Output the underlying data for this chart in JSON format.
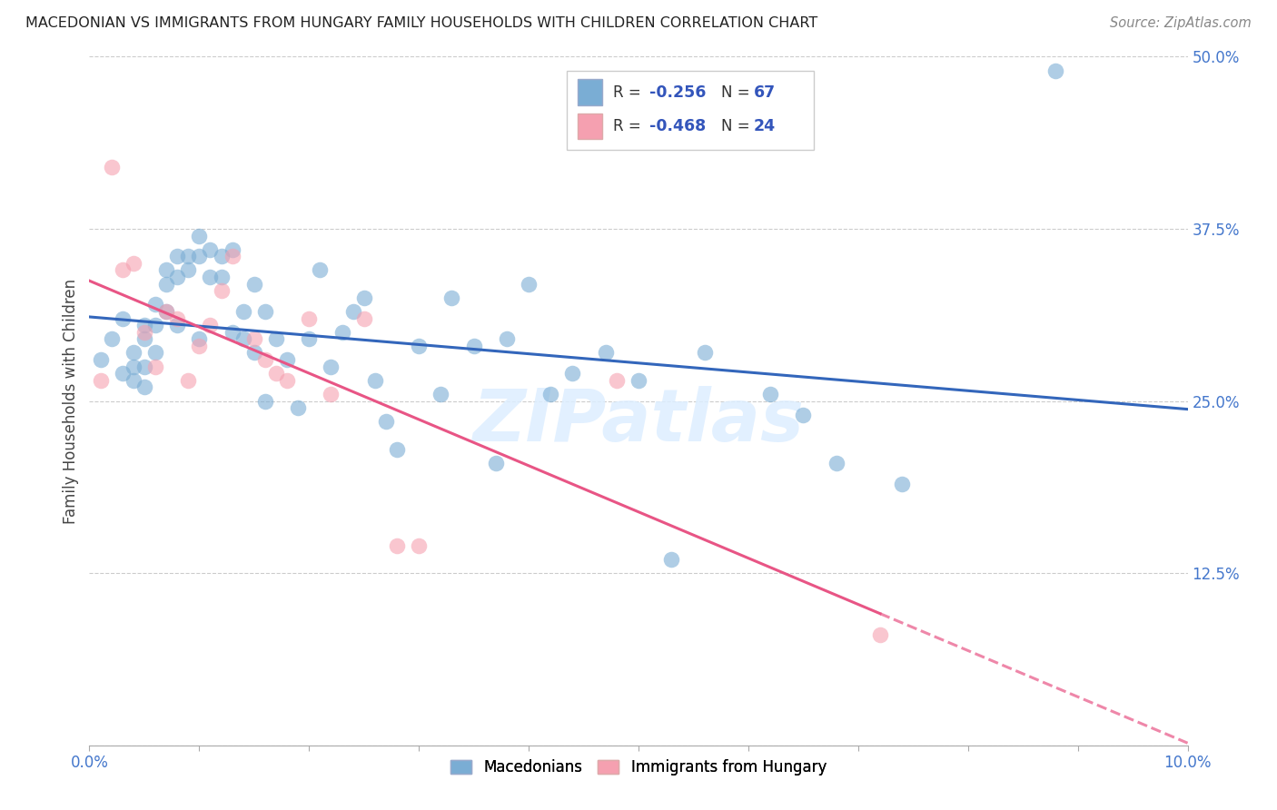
{
  "title": "MACEDONIAN VS IMMIGRANTS FROM HUNGARY FAMILY HOUSEHOLDS WITH CHILDREN CORRELATION CHART",
  "source": "Source: ZipAtlas.com",
  "ylabel": "Family Households with Children",
  "x_min": 0.0,
  "x_max": 0.1,
  "y_min": 0.0,
  "y_max": 0.5,
  "x_ticks": [
    0.0,
    0.01,
    0.02,
    0.03,
    0.04,
    0.05,
    0.06,
    0.07,
    0.08,
    0.09,
    0.1
  ],
  "x_tick_labels_show": {
    "0.0": "0.0%",
    "0.10": "10.0%"
  },
  "y_ticks": [
    0.0,
    0.125,
    0.25,
    0.375,
    0.5
  ],
  "y_tick_labels": [
    "",
    "12.5%",
    "25.0%",
    "37.5%",
    "50.0%"
  ],
  "blue_color": "#7aadd4",
  "pink_color": "#f5a0b0",
  "blue_line_color": "#3366bb",
  "pink_line_color": "#e85585",
  "watermark_text": "ZIPatlas",
  "watermark_color": "#ddeeff",
  "legend_R1": "-0.256",
  "legend_N1": "67",
  "legend_R2": "-0.468",
  "legend_N2": "24",
  "blue_points_x": [
    0.001,
    0.002,
    0.003,
    0.003,
    0.004,
    0.004,
    0.004,
    0.005,
    0.005,
    0.005,
    0.005,
    0.006,
    0.006,
    0.006,
    0.007,
    0.007,
    0.007,
    0.008,
    0.008,
    0.008,
    0.009,
    0.009,
    0.01,
    0.01,
    0.01,
    0.011,
    0.011,
    0.012,
    0.012,
    0.013,
    0.013,
    0.014,
    0.014,
    0.015,
    0.015,
    0.016,
    0.016,
    0.017,
    0.018,
    0.019,
    0.02,
    0.021,
    0.022,
    0.023,
    0.024,
    0.025,
    0.026,
    0.027,
    0.028,
    0.03,
    0.032,
    0.033,
    0.035,
    0.037,
    0.038,
    0.04,
    0.042,
    0.044,
    0.047,
    0.05,
    0.053,
    0.056,
    0.062,
    0.065,
    0.068,
    0.074,
    0.088
  ],
  "blue_points_y": [
    0.28,
    0.295,
    0.31,
    0.27,
    0.285,
    0.265,
    0.275,
    0.305,
    0.295,
    0.275,
    0.26,
    0.32,
    0.305,
    0.285,
    0.345,
    0.335,
    0.315,
    0.355,
    0.34,
    0.305,
    0.355,
    0.345,
    0.37,
    0.355,
    0.295,
    0.36,
    0.34,
    0.355,
    0.34,
    0.36,
    0.3,
    0.315,
    0.295,
    0.335,
    0.285,
    0.315,
    0.25,
    0.295,
    0.28,
    0.245,
    0.295,
    0.345,
    0.275,
    0.3,
    0.315,
    0.325,
    0.265,
    0.235,
    0.215,
    0.29,
    0.255,
    0.325,
    0.29,
    0.205,
    0.295,
    0.335,
    0.255,
    0.27,
    0.285,
    0.265,
    0.135,
    0.285,
    0.255,
    0.24,
    0.205,
    0.19,
    0.49
  ],
  "pink_points_x": [
    0.001,
    0.002,
    0.003,
    0.004,
    0.005,
    0.006,
    0.007,
    0.008,
    0.009,
    0.01,
    0.011,
    0.012,
    0.013,
    0.015,
    0.016,
    0.017,
    0.018,
    0.02,
    0.022,
    0.025,
    0.028,
    0.03,
    0.048,
    0.072
  ],
  "pink_points_y": [
    0.265,
    0.42,
    0.345,
    0.35,
    0.3,
    0.275,
    0.315,
    0.31,
    0.265,
    0.29,
    0.305,
    0.33,
    0.355,
    0.295,
    0.28,
    0.27,
    0.265,
    0.31,
    0.255,
    0.31,
    0.145,
    0.145,
    0.265,
    0.08
  ]
}
